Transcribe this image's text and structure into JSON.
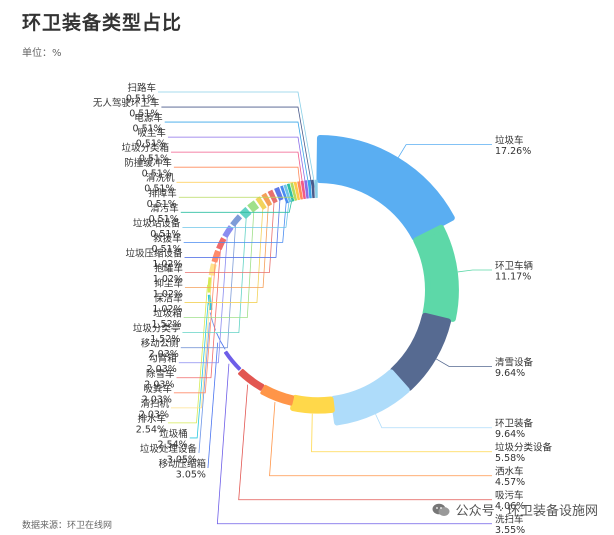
{
  "header": {
    "title": "环卫装备类型占比",
    "unit": "单位：%"
  },
  "footer": {
    "source": "数据来源：环卫在线网",
    "watermark": "公众号 · 环卫装备设施网"
  },
  "chart_data": {
    "type": "pie",
    "subtype": "doughnut",
    "title": "环卫装备类型占比",
    "unit": "%",
    "start": "top, clockwise",
    "series": [
      {
        "name": "垃圾车",
        "value": 17.26,
        "color": "#5aaef2"
      },
      {
        "name": "环卫车辆",
        "value": 11.17,
        "color": "#5dd8a8"
      },
      {
        "name": "清雪设备",
        "value": 9.64,
        "color": "#566a91"
      },
      {
        "name": "环卫装备",
        "value": 9.64,
        "color": "#aedcfa"
      },
      {
        "name": "垃圾分类设备",
        "value": 5.58,
        "color": "#ffd84a"
      },
      {
        "name": "洒水车",
        "value": 4.57,
        "color": "#ff9548"
      },
      {
        "name": "吸污车",
        "value": 4.06,
        "color": "#e25651"
      },
      {
        "name": "洗扫车",
        "value": 3.55,
        "color": "#6e5ee8"
      },
      {
        "name": "移动压缩箱",
        "value": 3.05,
        "color": "#4a74f0"
      },
      {
        "name": "垃圾处理设备",
        "value": 3.05,
        "color": "#6f96e8"
      },
      {
        "name": "垃圾桶",
        "value": 2.54,
        "color": "#2bc8e0"
      },
      {
        "name": "排水车",
        "value": 2.54,
        "color": "#d6ea55"
      },
      {
        "name": "清扫机",
        "value": 2.03,
        "color": "#ffe28c"
      },
      {
        "name": "吸粪车",
        "value": 2.03,
        "color": "#ff8c6a"
      },
      {
        "name": "除雪车",
        "value": 2.03,
        "color": "#f06b6b"
      },
      {
        "name": "勾臂箱",
        "value": 2.03,
        "color": "#8b8cf0"
      },
      {
        "name": "移动公厕",
        "value": 2.03,
        "color": "#7e9cd8"
      },
      {
        "name": "垃圾分类亭",
        "value": 1.52,
        "color": "#63d3c5"
      },
      {
        "name": "垃圾箱",
        "value": 1.52,
        "color": "#9fe08a"
      },
      {
        "name": "保洁车",
        "value": 1.02,
        "color": "#f2d35c"
      },
      {
        "name": "抑尘车",
        "value": 1.02,
        "color": "#f5a05a"
      },
      {
        "name": "抱罐车",
        "value": 1.02,
        "color": "#e8706e"
      },
      {
        "name": "垃圾压缩设备",
        "value": 1.02,
        "color": "#5f7ae8"
      },
      {
        "name": "救援车",
        "value": 0.51,
        "color": "#4a8cf0"
      },
      {
        "name": "垃圾站设备",
        "value": 0.51,
        "color": "#6fc6e8"
      },
      {
        "name": "清污车",
        "value": 0.51,
        "color": "#2fbfa2"
      },
      {
        "name": "排障车",
        "value": 0.51,
        "color": "#b6db5e"
      },
      {
        "name": "清洗机",
        "value": 0.51,
        "color": "#ffc94a"
      },
      {
        "name": "防撞缓冲车",
        "value": 0.51,
        "color": "#ff8a5a"
      },
      {
        "name": "垃圾分类箱",
        "value": 0.51,
        "color": "#f05a8a"
      },
      {
        "name": "吸尘车",
        "value": 0.51,
        "color": "#8a6ee8"
      },
      {
        "name": "电源车",
        "value": 0.51,
        "color": "#3aa6e8"
      },
      {
        "name": "无人驾驶环卫车",
        "value": 0.51,
        "color": "#4a5a8a"
      },
      {
        "name": "扫路车",
        "value": 0.51,
        "color": "#8ad0e8"
      }
    ],
    "labels_right": [
      "垃圾车",
      "环卫车辆",
      "清雪设备",
      "环卫装备",
      "垃圾分类设备",
      "洒水车",
      "吸污车",
      "洗扫车"
    ]
  }
}
